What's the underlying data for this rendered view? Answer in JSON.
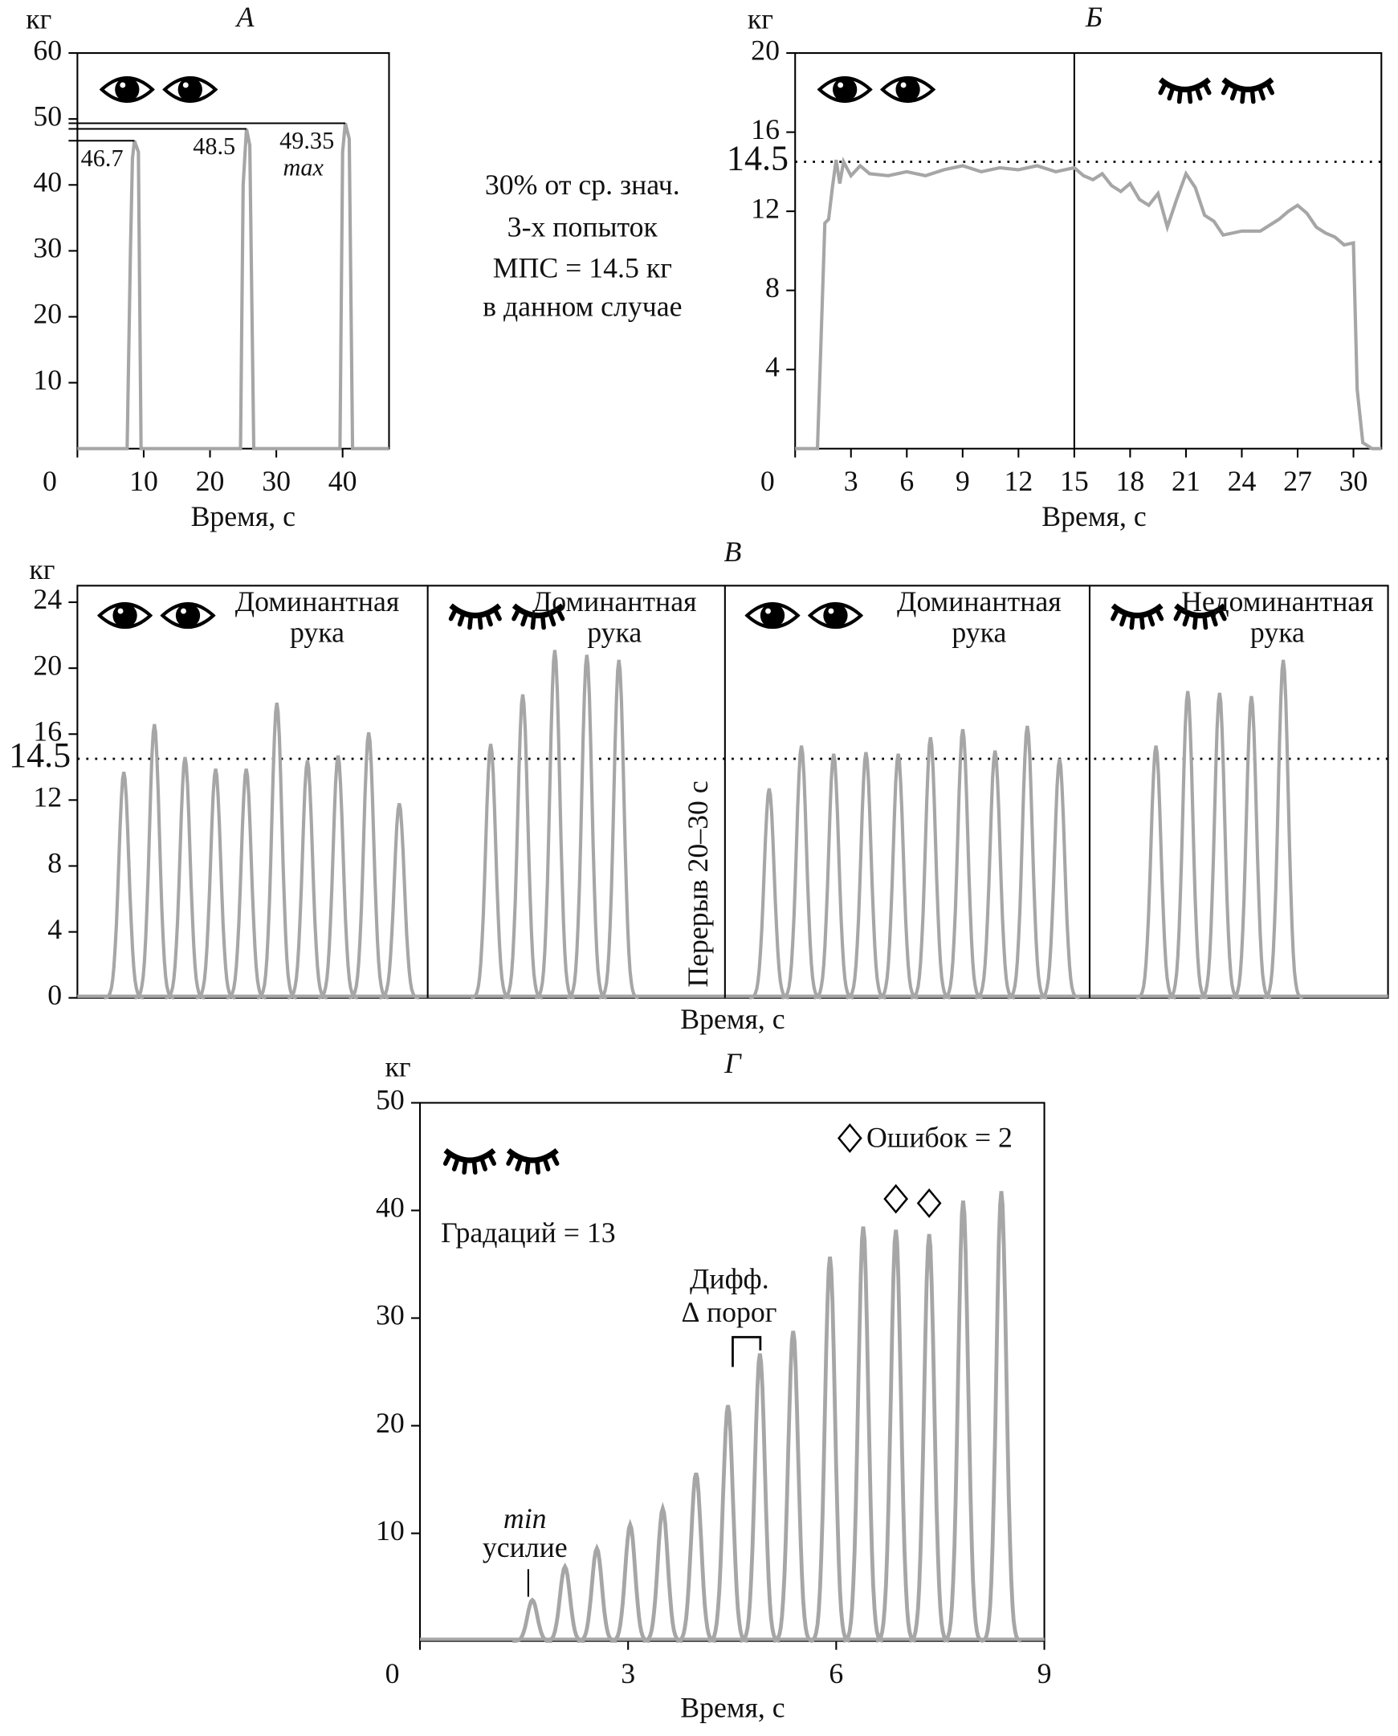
{
  "note_lines": [
    "30% от ср. знач.",
    "3-х попыток",
    "МПС = 14.5 кг",
    "в данном случае"
  ],
  "chart_data": [
    {
      "type": "line",
      "title": "А",
      "y_unit": "кг",
      "x_label": "Время, с",
      "color": "#a6a6a6",
      "eyes": [
        "open"
      ],
      "x": [
        0,
        7.5,
        8.0,
        8.3,
        8.6,
        9.2,
        9.6,
        24.6,
        25.0,
        25.5,
        26.0,
        26.6,
        39.6,
        40.0,
        40.4,
        41.0,
        41.5,
        47
      ],
      "values": [
        0,
        0,
        30,
        44,
        46.7,
        45,
        0,
        0,
        40,
        48.5,
        46,
        0,
        0,
        45,
        49.35,
        47,
        0,
        0
      ],
      "xlim": [
        0,
        47
      ],
      "ylim": [
        0,
        60
      ],
      "xticks": [
        0,
        10,
        20,
        30,
        40
      ],
      "yticks": [
        10,
        20,
        30,
        40,
        50,
        60
      ],
      "annotations": [
        "max"
      ]
    },
    {
      "type": "line",
      "title": "Б",
      "y_unit": "кг",
      "x_label": "Время, с",
      "color": "#a6a6a6",
      "eyes": [
        "open",
        "closed"
      ],
      "x": [
        0,
        1.2,
        1.6,
        1.8,
        2.0,
        2.2,
        2.4,
        2.6,
        3,
        3.5,
        4,
        5,
        6,
        7,
        8,
        9,
        10,
        11,
        12,
        13,
        14,
        15,
        15.5,
        16,
        16.5,
        17,
        17.5,
        18,
        18.5,
        19,
        19.5,
        20,
        20.5,
        21,
        21.5,
        22,
        22.5,
        23,
        24,
        25,
        26,
        26.5,
        27,
        27.5,
        28,
        28.5,
        29,
        29.5,
        30,
        30.2,
        30.5,
        31,
        31.5
      ],
      "values": [
        0,
        0,
        11.4,
        11.6,
        13.2,
        14.6,
        13.4,
        14.5,
        13.8,
        14.3,
        13.9,
        13.8,
        14.0,
        13.8,
        14.1,
        14.3,
        14.0,
        14.2,
        14.1,
        14.3,
        14.0,
        14.2,
        13.8,
        13.6,
        13.9,
        13.3,
        13.0,
        13.4,
        12.6,
        12.3,
        12.9,
        11.2,
        12.6,
        13.9,
        13.2,
        11.8,
        11.5,
        10.8,
        11.0,
        11.0,
        11.6,
        12.0,
        12.3,
        11.9,
        11.2,
        10.9,
        10.7,
        10.3,
        10.4,
        3.0,
        0.3,
        0,
        0
      ],
      "xlim": [
        0,
        31.5
      ],
      "ylim": [
        0,
        20
      ],
      "xticks": [
        0,
        3,
        6,
        9,
        12,
        15,
        18,
        21,
        24,
        27,
        30
      ],
      "yticks": [
        4,
        8,
        12,
        16,
        20
      ],
      "threshold": 14.5,
      "dividers": [
        15
      ]
    },
    {
      "type": "pulse",
      "title": "В",
      "y_unit": "кг",
      "x_label": "Время, с",
      "color": "#a6a6a6",
      "ylim": [
        0,
        24
      ],
      "yticks": [
        0,
        4,
        8,
        12,
        16,
        20,
        24
      ],
      "threshold": 14.5,
      "break_label": "Перерыв 20–30 с",
      "panels": [
        {
          "text": [
            "Доминантная",
            "рука"
          ],
          "eyes": "open",
          "values": [
            13.7,
            16.6,
            14.6,
            13.9,
            13.9,
            17.9,
            14.4,
            14.7,
            16.1,
            11.8
          ]
        },
        {
          "text": [
            "Доминантная",
            "рука"
          ],
          "eyes": "closed",
          "values": [
            15.4,
            18.4,
            21.1,
            20.8,
            20.5
          ]
        },
        {
          "text": [
            "Доминантная",
            "рука"
          ],
          "eyes": "open",
          "values": [
            12.7,
            15.3,
            14.8,
            14.9,
            14.8,
            15.8,
            16.3,
            15.0,
            16.5,
            14.5
          ]
        },
        {
          "text": [
            "Недоминантная",
            "рука"
          ],
          "eyes": "closed",
          "values": [
            15.3,
            18.6,
            18.5,
            18.3,
            20.5
          ]
        }
      ]
    },
    {
      "type": "pulse",
      "title": "Г",
      "y_unit": "кг",
      "x_label": "Время, с",
      "color": "#a6a6a6",
      "eyes": [
        "closed"
      ],
      "x": [
        1.62,
        2.09,
        2.55,
        3.03,
        3.5,
        3.98,
        4.44,
        4.9,
        5.38,
        5.91,
        6.39,
        6.86,
        7.34,
        7.83,
        8.38
      ],
      "values": [
        3.8,
        6.9,
        8.6,
        10.8,
        12.3,
        15.6,
        21.9,
        26.7,
        28.8,
        35.7,
        38.5,
        38.2,
        37.8,
        40.9,
        41.8
      ],
      "xlim": [
        0,
        9
      ],
      "ylim": [
        0,
        50
      ],
      "xticks": [
        0,
        3,
        6,
        9
      ],
      "yticks": [
        10,
        20,
        30,
        40,
        50
      ],
      "annotations": [
        "Градаций = 13",
        "min",
        "усилие",
        "Дифф.",
        "∆ порог",
        "Ошибок = 2"
      ]
    }
  ]
}
